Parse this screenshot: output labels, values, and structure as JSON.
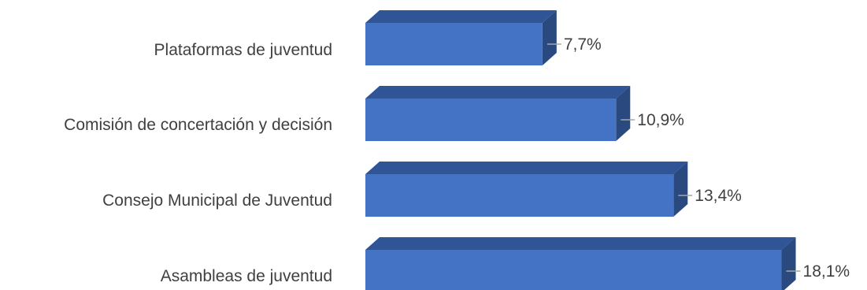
{
  "chart_data": {
    "type": "bar",
    "orientation": "horizontal",
    "style": "3d",
    "categories": [
      "Plataformas de juventud",
      "Comisión de concertación y decisión",
      "Consejo Municipal de Juventud",
      "Asambleas de juventud"
    ],
    "values": [
      7.7,
      10.9,
      13.4,
      18.1
    ],
    "value_labels": [
      "7,7%",
      "10,9%",
      "13,4%",
      "18,1%"
    ],
    "unit": "%",
    "colors": {
      "bar_front": "#4472C4",
      "bar_top": "#2F5597",
      "bar_side": "#2A4A7F",
      "leader_line": "#A6A6A6",
      "text": "#404040"
    }
  }
}
